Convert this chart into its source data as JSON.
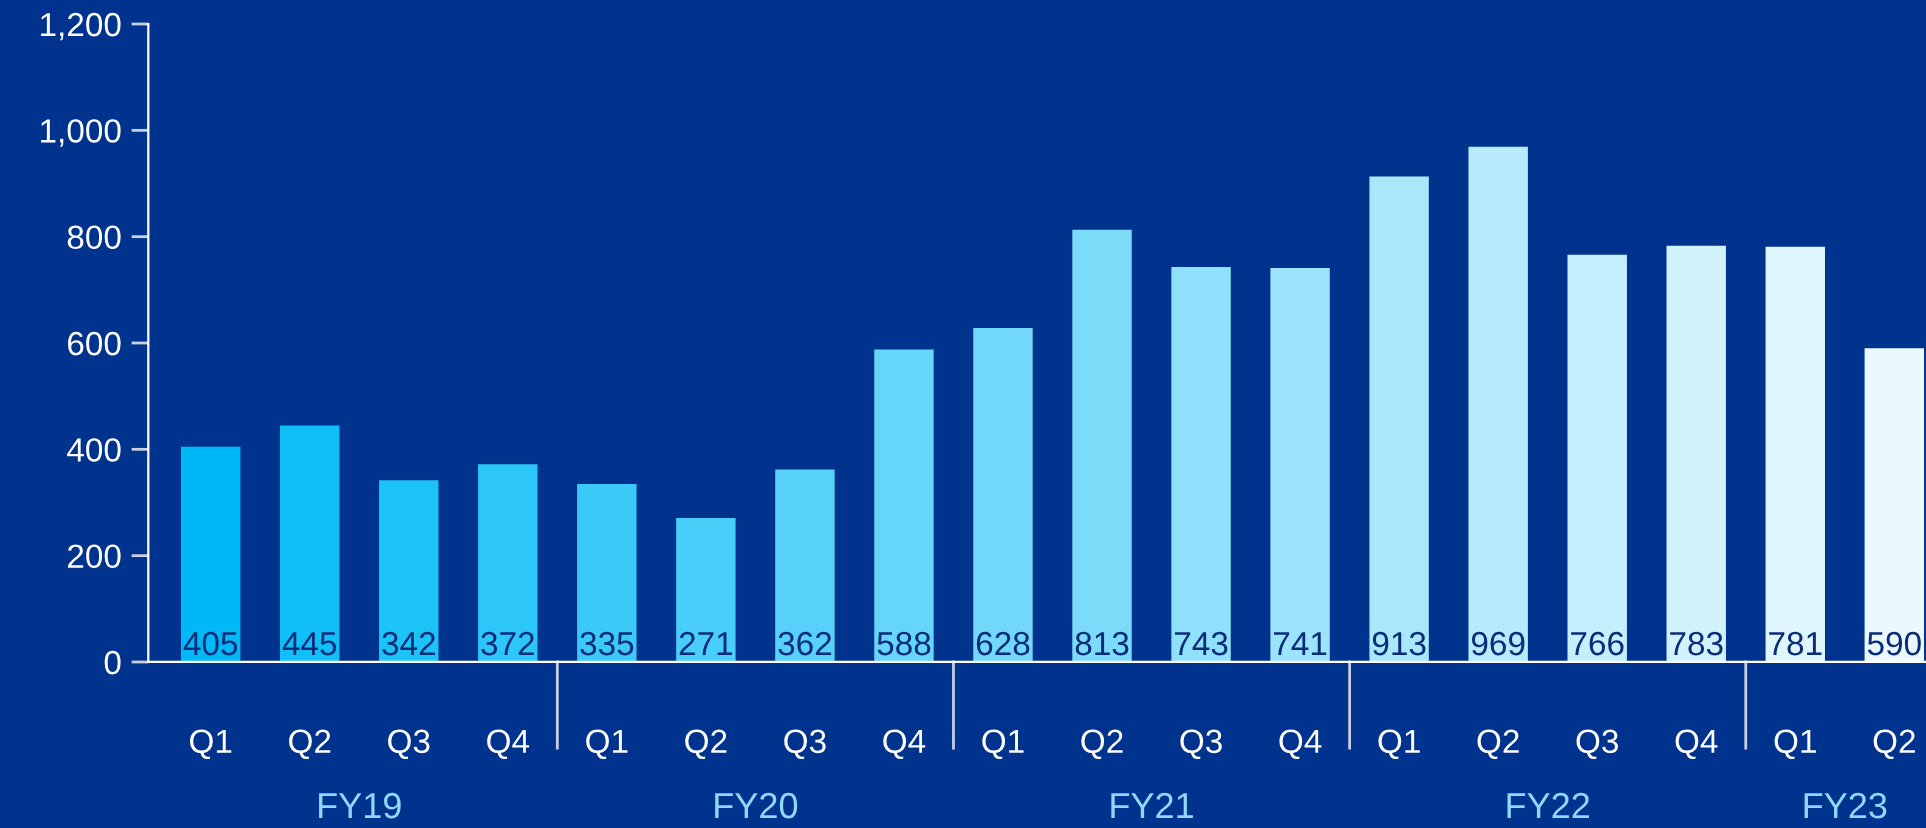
{
  "chart_data": {
    "type": "bar",
    "categories": [
      "Q1",
      "Q2",
      "Q3",
      "Q4",
      "Q1",
      "Q2",
      "Q3",
      "Q4",
      "Q1",
      "Q2",
      "Q3",
      "Q4",
      "Q1",
      "Q2",
      "Q3",
      "Q4",
      "Q1",
      "Q2"
    ],
    "values": [
      405,
      445,
      342,
      372,
      335,
      271,
      362,
      588,
      628,
      813,
      743,
      741,
      913,
      969,
      766,
      783,
      781,
      590
    ],
    "colors": [
      "#00b8f5",
      "#10bff7",
      "#1cc3f7",
      "#2cc6f8",
      "#3bc9f8",
      "#49cdf9",
      "#57d1fa",
      "#66d5fa",
      "#71d8fa",
      "#7ddbfa",
      "#8ee0fb",
      "#9ce4fb",
      "#a9e8fb",
      "#b7ebfc",
      "#c5effc",
      "#d1f2fd",
      "#dff6fd",
      "#ebf9fe"
    ],
    "ylim": [
      0,
      1200
    ],
    "yticks": [
      0,
      {
        "value": 200,
        "label": "200"
      },
      400,
      600,
      800,
      {
        "value": 1000,
        "label": "1,000"
      },
      {
        "value": 1200,
        "label": "1,200"
      }
    ],
    "data_labels": true,
    "grid": false,
    "annotations": [
      "FY19",
      "FY20",
      "FY21",
      "FY22",
      "FY23"
    ]
  }
}
